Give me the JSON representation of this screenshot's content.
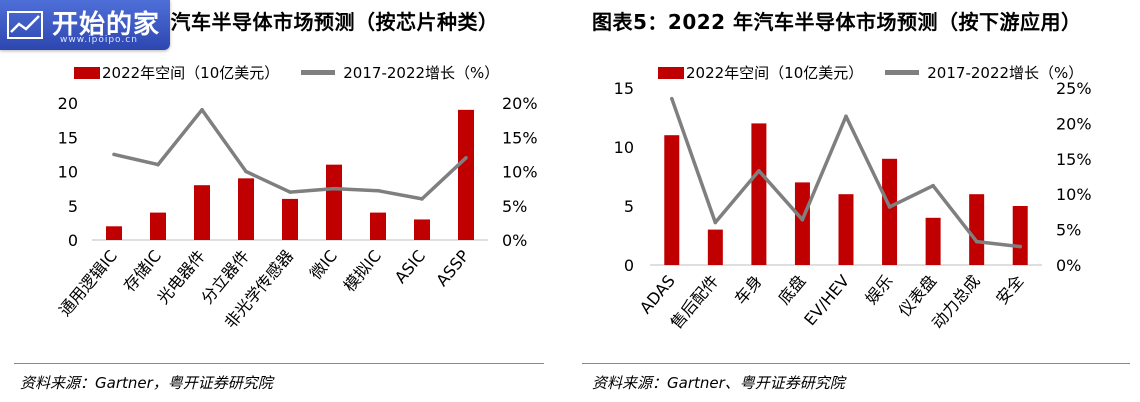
{
  "logo": {
    "text": "开始的家",
    "url": "www.ipoipo.cn"
  },
  "colors": {
    "bar": "#c00000",
    "line": "#7f7f7f"
  },
  "left_panel": {
    "title": "年汽车半导体市场预测（按芯片种类）",
    "legend_bar": "2022年空间（10亿美元）",
    "legend_line": "2017-2022增长（%）",
    "source": "资料来源：Gartner，粤开证券研究院"
  },
  "right_panel": {
    "title": "图表5：2022 年汽车半导体市场预测（按下游应用）",
    "legend_bar": "2022年空间（10亿美元）",
    "legend_line": "2017-2022增长（%）",
    "source": "资料来源：Gartner、粤开证券研究院"
  },
  "chart_data": [
    {
      "type": "bar",
      "categories": [
        "通用逻辑IC",
        "存储IC",
        "光电器件",
        "分立器件",
        "非光学传感器",
        "微IC",
        "模拟IC",
        "ASIC",
        "ASSP"
      ],
      "series": [
        {
          "name": "2022年空间（10亿美元）",
          "type": "bar",
          "axis": "left",
          "values": [
            2,
            4,
            8,
            9,
            6,
            11,
            4,
            3,
            19
          ]
        },
        {
          "name": "2017-2022增长（%）",
          "type": "line",
          "axis": "right",
          "values": [
            12.5,
            11,
            19,
            10,
            7,
            7.5,
            7.2,
            6,
            12
          ]
        }
      ],
      "ylim_left": [
        0,
        20
      ],
      "yticks_left": [
        "0",
        "5",
        "10",
        "15",
        "20"
      ],
      "ylim_right": [
        0,
        20
      ],
      "yticks_right": [
        "0%",
        "5%",
        "10%",
        "15%",
        "20%"
      ],
      "grid": false,
      "legend": "top"
    },
    {
      "type": "bar",
      "categories": [
        "ADAS",
        "售后配件",
        "车身",
        "底盘",
        "EV/HEV",
        "娱乐",
        "仪表盘",
        "动力总成",
        "安全"
      ],
      "series": [
        {
          "name": "2022年空间（10亿美元）",
          "type": "bar",
          "axis": "left",
          "values": [
            11,
            3,
            12,
            7,
            6,
            9,
            4,
            6,
            5
          ]
        },
        {
          "name": "2017-2022增长（%）",
          "type": "line",
          "axis": "right",
          "values": [
            23.5,
            6,
            13.3,
            6.4,
            21,
            8.2,
            11.2,
            3.3,
            2.6
          ]
        }
      ],
      "ylim_left": [
        0,
        15
      ],
      "yticks_left": [
        "0",
        "5",
        "10",
        "15"
      ],
      "ylim_right": [
        0,
        25
      ],
      "yticks_right": [
        "0%",
        "5%",
        "10%",
        "15%",
        "20%",
        "25%"
      ],
      "grid": false,
      "legend": "top"
    }
  ]
}
